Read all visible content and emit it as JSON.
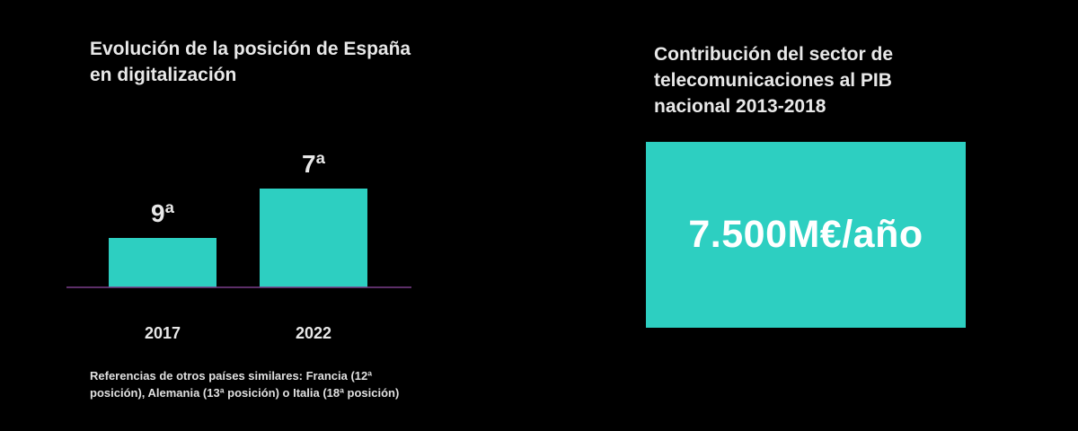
{
  "colors": {
    "background": "#000000",
    "bar": "#2dcfc1",
    "baseline": "#7a3d8a",
    "text": "#e8e8e8",
    "kpi_text": "#ffffff"
  },
  "left_panel": {
    "title": "Evolución de la posición de España en digitalización",
    "footnote": "Referencias de otros países similares: Francia (12ª posición), Alemania (13ª posición) o Italia (18ª posición)"
  },
  "chart_data": {
    "type": "bar",
    "title": "Evolución de la posición de España en digitalización",
    "categories": [
      "2017",
      "2022"
    ],
    "values": [
      9,
      7
    ],
    "data_labels": [
      "9ª",
      "7ª"
    ],
    "xlabel": "",
    "ylabel": "",
    "y_axis_shown": false,
    "grid": false,
    "note": "Lower rank number is better; bar height grows as rank improves"
  },
  "right_panel": {
    "title": "Contribución del sector de telecomunicaciones al PIB nacional 2013-2018",
    "kpi_value": "7.500M€/año"
  }
}
